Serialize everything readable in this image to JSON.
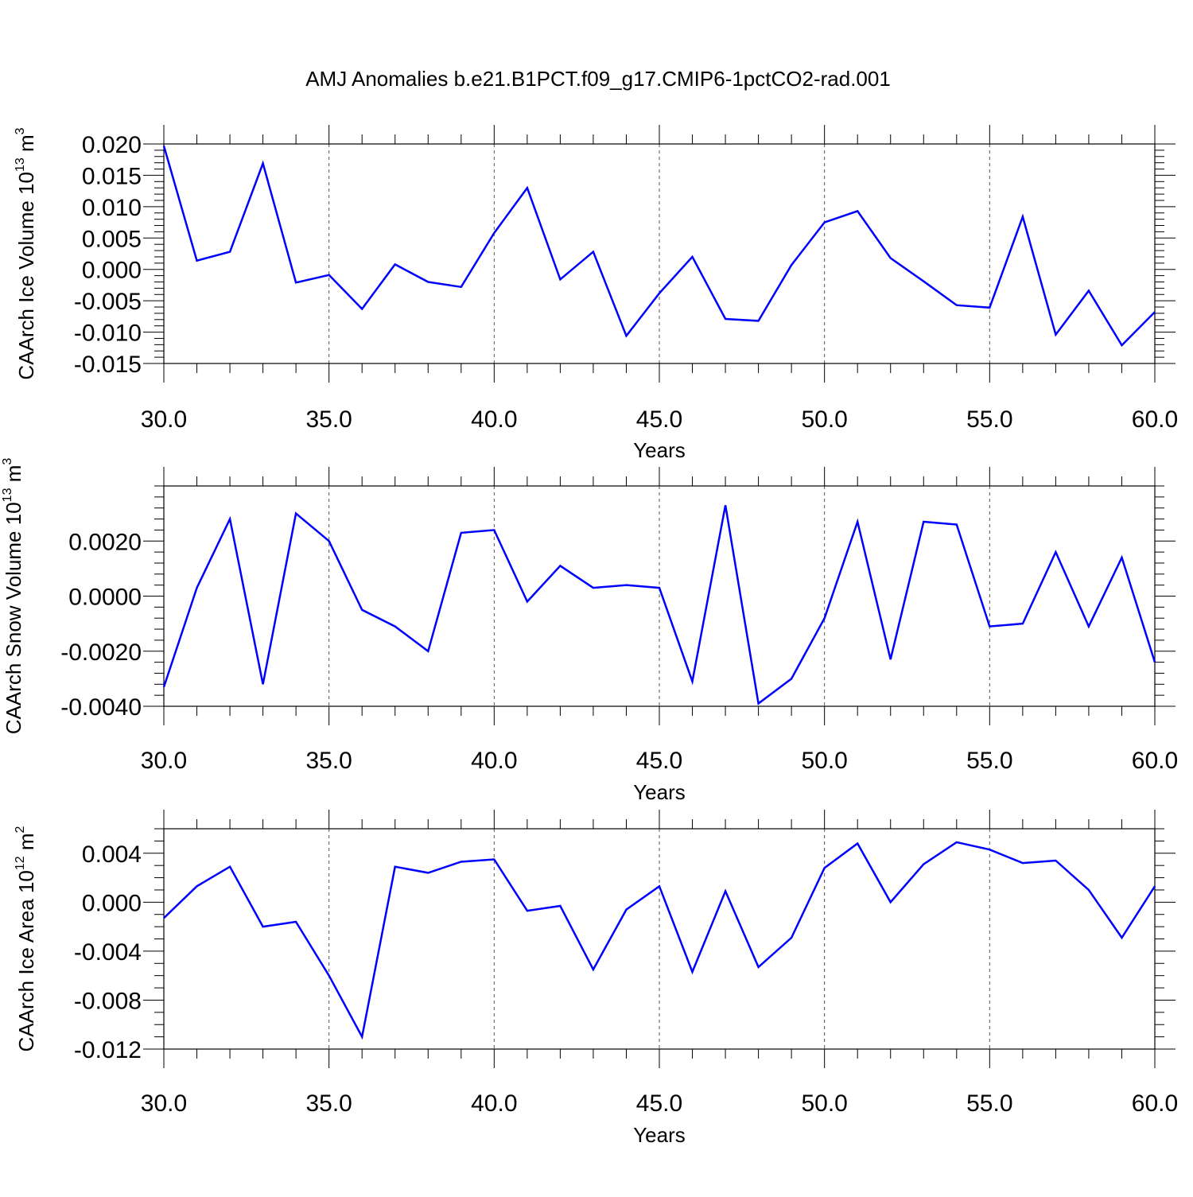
{
  "title": "AMJ Anomalies b.e21.B1PCT.f09_g17.CMIP6-1pctCO2-rad.001",
  "line_color": "#0000ff",
  "chart_data": [
    {
      "type": "line",
      "ylabel": {
        "base": "CAArch Ice Volume 10",
        "exp": "13",
        "unit": " m",
        "unit_exp": "3"
      },
      "xlabel": "Years",
      "xlim": [
        30,
        60
      ],
      "ylim": [
        -0.015,
        0.02
      ],
      "x_ticks": [
        "30.0",
        "35.0",
        "40.0",
        "45.0",
        "50.0",
        "55.0",
        "60.0"
      ],
      "y_ticks": [
        "0.020",
        "0.015",
        "0.010",
        "0.005",
        "0.000",
        "-0.005",
        "-0.010",
        "-0.015"
      ],
      "x": [
        30,
        31,
        32,
        33,
        34,
        35,
        36,
        37,
        38,
        39,
        40,
        41,
        42,
        43,
        44,
        45,
        46,
        47,
        48,
        49,
        50,
        51,
        52,
        53,
        54,
        55,
        56,
        57,
        58,
        59,
        60
      ],
      "values": [
        0.0197,
        0.0014,
        0.0028,
        0.0169,
        -0.0021,
        -0.0009,
        -0.0063,
        0.0008,
        -0.002,
        -0.0028,
        0.0058,
        0.013,
        -0.0016,
        0.0028,
        -0.0106,
        -0.0038,
        0.002,
        -0.0079,
        -0.0082,
        0.0007,
        0.0075,
        0.0093,
        0.0018,
        -0.0019,
        -0.0057,
        -0.0061,
        0.0084,
        -0.0104,
        -0.0034,
        -0.0121,
        -0.0068
      ]
    },
    {
      "type": "line",
      "ylabel": {
        "base": "CAArch Snow Volume 10",
        "exp": "13",
        "unit": " m",
        "unit_exp": "3"
      },
      "xlabel": "Years",
      "xlim": [
        30,
        60
      ],
      "ylim": [
        -0.004,
        0.004
      ],
      "x_ticks": [
        "30.0",
        "35.0",
        "40.0",
        "45.0",
        "50.0",
        "55.0",
        "60.0"
      ],
      "y_ticks": [
        "0.0020",
        "0.0000",
        "-0.0020",
        "-0.0040"
      ],
      "x": [
        30,
        31,
        32,
        33,
        34,
        35,
        36,
        37,
        38,
        39,
        40,
        41,
        42,
        43,
        44,
        45,
        46,
        47,
        48,
        49,
        50,
        51,
        52,
        53,
        54,
        55,
        56,
        57,
        58,
        59,
        60
      ],
      "values": [
        -0.0033,
        0.0003,
        0.0028,
        -0.0032,
        0.003,
        0.002,
        -0.0005,
        -0.0011,
        -0.002,
        0.0023,
        0.0024,
        -0.0002,
        0.0011,
        0.0003,
        0.0004,
        0.0003,
        -0.0031,
        0.0033,
        -0.0039,
        -0.003,
        -0.0008,
        0.0027,
        -0.0023,
        0.0027,
        0.0026,
        -0.0011,
        -0.001,
        0.0016,
        -0.0011,
        0.0014,
        -0.0024
      ]
    },
    {
      "type": "line",
      "ylabel": {
        "base": "CAArch Ice Area 10",
        "exp": "12",
        "unit": " m",
        "unit_exp": "2"
      },
      "xlabel": "Years",
      "xlim": [
        30,
        60
      ],
      "ylim": [
        -0.012,
        0.006
      ],
      "x_ticks": [
        "30.0",
        "35.0",
        "40.0",
        "45.0",
        "50.0",
        "55.0",
        "60.0"
      ],
      "y_ticks": [
        "0.004",
        "0.000",
        "-0.004",
        "-0.008",
        "-0.012"
      ],
      "x": [
        30,
        31,
        32,
        33,
        34,
        35,
        36,
        37,
        38,
        39,
        40,
        41,
        42,
        43,
        44,
        45,
        46,
        47,
        48,
        49,
        50,
        51,
        52,
        53,
        54,
        55,
        56,
        57,
        58,
        59,
        60
      ],
      "values": [
        -0.0013,
        0.0013,
        0.0029,
        -0.002,
        -0.0016,
        -0.006,
        -0.011,
        0.0029,
        0.0024,
        0.0033,
        0.0035,
        -0.0007,
        -0.0003,
        -0.0055,
        -0.0006,
        0.0013,
        -0.0057,
        0.0009,
        -0.0053,
        -0.0029,
        0.0028,
        0.0048,
        0.0,
        0.0031,
        0.0049,
        0.0043,
        0.0032,
        0.0034,
        0.001,
        -0.0029,
        0.0013
      ]
    }
  ]
}
